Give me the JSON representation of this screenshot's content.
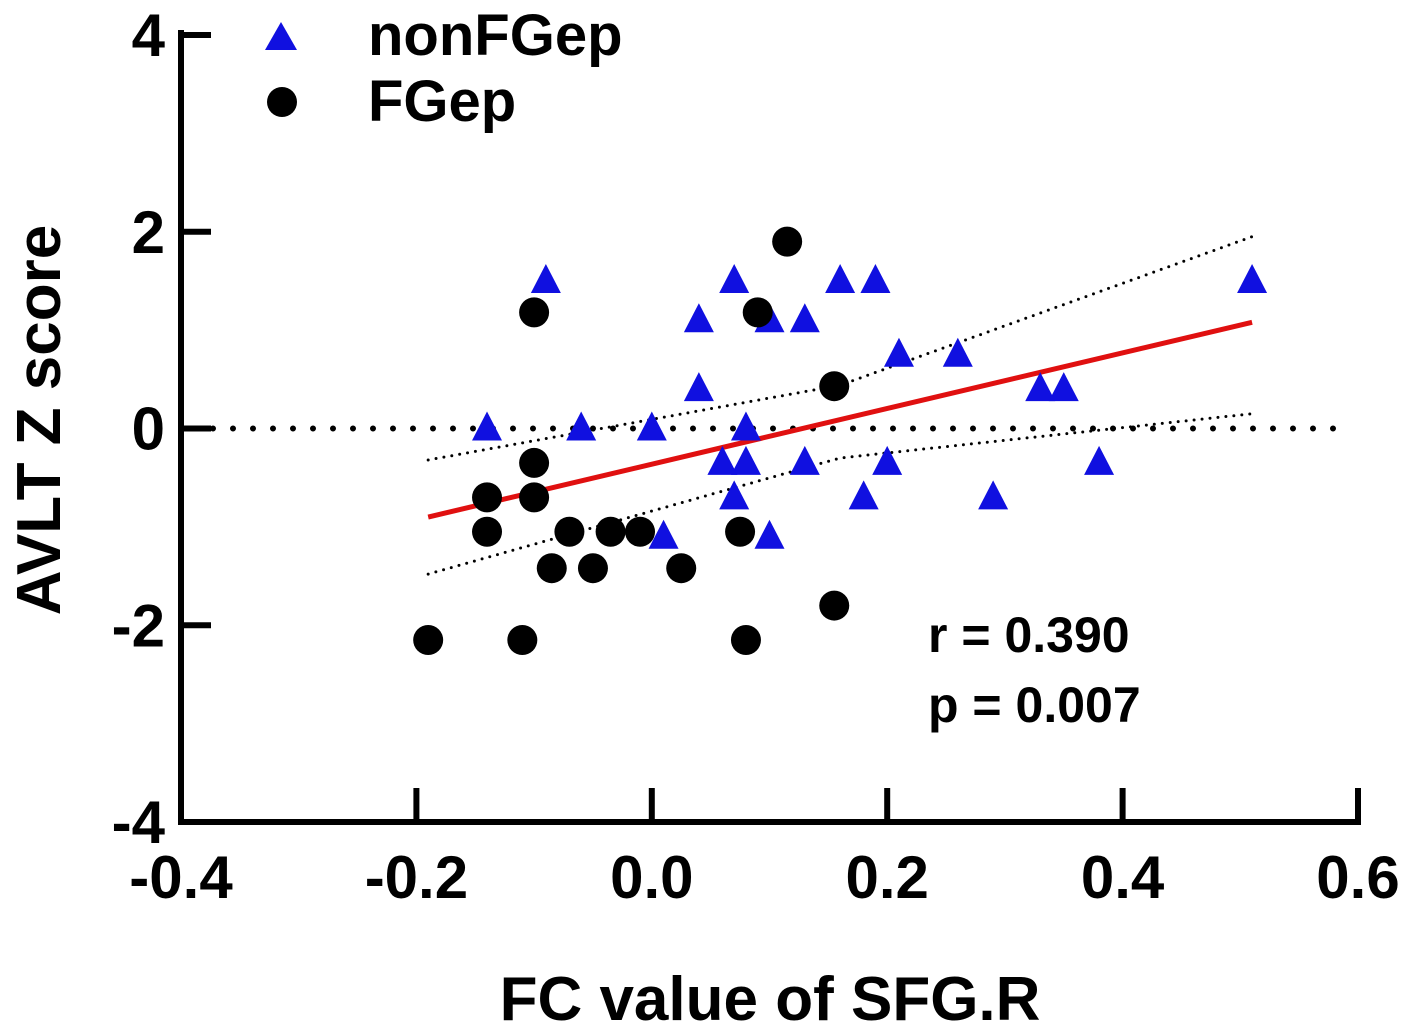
{
  "chart_data": {
    "type": "scatter",
    "title": "",
    "xlabel": "FC value of SFG.R",
    "ylabel": "AVLT Z score",
    "xlim": [
      -0.4,
      0.6
    ],
    "ylim": [
      -4,
      4
    ],
    "x_ticks": [
      -0.4,
      -0.2,
      0.0,
      0.2,
      0.4,
      0.6
    ],
    "x_tick_labels": [
      "-0.4",
      "-0.2",
      "0.0",
      "0.2",
      "0.4",
      "0.6"
    ],
    "y_ticks": [
      -4,
      -2,
      0,
      2,
      4
    ],
    "y_tick_labels": [
      "-4",
      "-2",
      "0",
      "2",
      "4"
    ],
    "grid": false,
    "legend_position": "top-left",
    "series": [
      {
        "name": "nonFGep",
        "marker": "triangle",
        "color": "#1010e0",
        "points": [
          [
            -0.09,
            1.5
          ],
          [
            -0.14,
            0.0
          ],
          [
            -0.06,
            0.0
          ],
          [
            0.0,
            0.0
          ],
          [
            0.01,
            -1.1
          ],
          [
            0.04,
            1.1
          ],
          [
            0.04,
            0.4
          ],
          [
            0.06,
            -0.35
          ],
          [
            0.07,
            1.5
          ],
          [
            0.07,
            -0.7
          ],
          [
            0.08,
            0.0
          ],
          [
            0.08,
            -0.35
          ],
          [
            0.1,
            1.1
          ],
          [
            0.1,
            -1.1
          ],
          [
            0.13,
            1.1
          ],
          [
            0.13,
            -0.35
          ],
          [
            0.16,
            1.5
          ],
          [
            0.18,
            -0.7
          ],
          [
            0.19,
            1.5
          ],
          [
            0.2,
            -0.35
          ],
          [
            0.21,
            0.75
          ],
          [
            0.26,
            0.75
          ],
          [
            0.29,
            -0.7
          ],
          [
            0.33,
            0.4
          ],
          [
            0.35,
            0.4
          ],
          [
            0.38,
            -0.35
          ],
          [
            0.51,
            1.5
          ]
        ]
      },
      {
        "name": "FGep",
        "marker": "circle",
        "color": "#000000",
        "points": [
          [
            -0.19,
            -2.15
          ],
          [
            -0.14,
            -0.7
          ],
          [
            -0.14,
            -1.05
          ],
          [
            -0.11,
            -2.15
          ],
          [
            -0.1,
            1.18
          ],
          [
            -0.1,
            -0.35
          ],
          [
            -0.1,
            -0.7
          ],
          [
            -0.085,
            -1.42
          ],
          [
            -0.07,
            -1.05
          ],
          [
            -0.05,
            -1.42
          ],
          [
            -0.035,
            -1.05
          ],
          [
            -0.01,
            -1.05
          ],
          [
            0.025,
            -1.42
          ],
          [
            0.075,
            -1.05
          ],
          [
            0.08,
            -2.15
          ],
          [
            0.09,
            1.18
          ],
          [
            0.115,
            1.9
          ],
          [
            0.155,
            0.43
          ],
          [
            0.155,
            -1.8
          ]
        ]
      }
    ],
    "fit_line": {
      "x": [
        -0.19,
        0.51
      ],
      "y": [
        -0.9,
        1.08
      ],
      "color": "#e01010"
    },
    "ci_upper": {
      "x": [
        -0.19,
        0.16,
        0.51
      ],
      "y": [
        -0.32,
        0.44,
        1.95
      ]
    },
    "ci_lower": {
      "x": [
        -0.19,
        0.16,
        0.51
      ],
      "y": [
        -1.48,
        -0.3,
        0.15
      ]
    },
    "reference_line": {
      "y": 0,
      "x": [
        -0.4,
        0.6
      ],
      "style": "dotted"
    },
    "annotations": [
      "r = 0.390",
      "p = 0.007"
    ]
  }
}
